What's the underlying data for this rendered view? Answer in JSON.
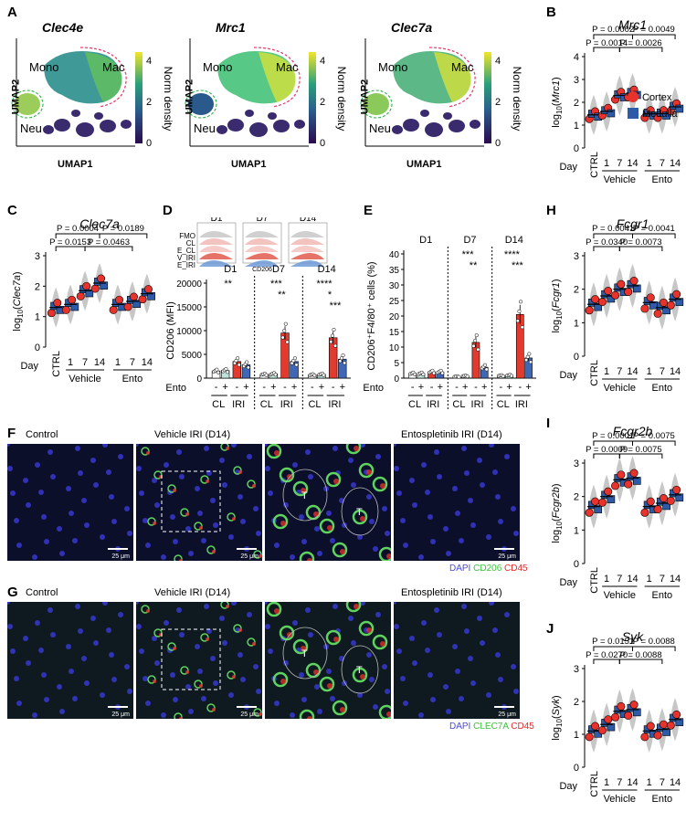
{
  "panels": {
    "A": "A",
    "B": "B",
    "C": "C",
    "D": "D",
    "E": "E",
    "F": "F",
    "G": "G",
    "H": "H",
    "I": "I",
    "J": "J"
  },
  "umap": {
    "titles": [
      "Clec4e",
      "Mrc1",
      "Clec7a"
    ],
    "xlabel": "UMAP1",
    "ylabel": "UMAP2",
    "clusters": [
      "Mono",
      "Mac",
      "Neu"
    ],
    "colorbar_label": "Norm density",
    "colorbar_ticks": [
      "4",
      "2",
      "0"
    ]
  },
  "violin_common": {
    "day_label": "Day",
    "days": [
      "CTRL",
      "1",
      "7",
      "14",
      "1",
      "7",
      "14"
    ],
    "groups": [
      "Vehicle",
      "Ento"
    ],
    "legend": [
      "Cortex",
      "Medulla"
    ],
    "cortex_color": "#e8322c",
    "medulla_color": "#2f5aa8"
  },
  "violins": [
    {
      "panel": "B",
      "gene": "Mrc1",
      "ylabel_pre": "log",
      "ylabel_gene": "Mrc1",
      "yticks": [
        "0",
        "1",
        "2",
        "3",
        "4"
      ],
      "ymax": 4,
      "p_top": [
        "P = 0.0002",
        "P = 0.0049"
      ],
      "p_low": [
        "P = 0.0014",
        "P = 0.0026"
      ],
      "medians": [
        1.45,
        1.6,
        2.3,
        2.4,
        1.5,
        1.5,
        1.8
      ]
    },
    {
      "panel": "C",
      "gene": "Clec7a",
      "ylabel_pre": "log",
      "ylabel_gene": "Clec7a",
      "yticks": [
        "0",
        "1",
        "2",
        "3"
      ],
      "ymax": 3,
      "p_top": [
        "P = 0.0004",
        "P = 0.0189"
      ],
      "p_low": [
        "P = 0.0153",
        "P = 0.0463"
      ],
      "medians": [
        1.3,
        1.4,
        1.85,
        2.1,
        1.4,
        1.5,
        1.75
      ]
    },
    {
      "panel": "H",
      "gene": "Fcgr1",
      "ylabel_pre": "log",
      "ylabel_gene": "Fcgr1",
      "yticks": [
        "0",
        "1",
        "2",
        "3"
      ],
      "ymax": 3,
      "p_top": [
        "P = 0.0041",
        "P = 0.0041"
      ],
      "p_low": [
        "P = 0.0340",
        "P = 0.0073"
      ],
      "medians": [
        1.55,
        1.8,
        2.0,
        2.1,
        1.6,
        1.45,
        1.7
      ]
    },
    {
      "panel": "I",
      "gene": "Fcgr2b",
      "ylabel_pre": "log",
      "ylabel_gene": "Fcgr2b",
      "yticks": [
        "0",
        "1",
        "2",
        "3"
      ],
      "ymax": 3,
      "p_top": [
        "P = 0.0001",
        "P = 0.0075"
      ],
      "p_low": [
        "P = 0.0009",
        "P = 0.0075"
      ],
      "medians": [
        1.7,
        2.0,
        2.5,
        2.55,
        1.7,
        1.8,
        2.05
      ]
    },
    {
      "panel": "J",
      "gene": "Syk",
      "ylabel_pre": "log",
      "ylabel_gene": "Syk",
      "yticks": [
        "0",
        "1",
        "2",
        "3"
      ],
      "ymax": 3,
      "p_top": [
        "P = 0.0151",
        "P = 0.0088"
      ],
      "p_low": [
        "P = 0.0270",
        "P = 0.0088"
      ],
      "medians": [
        1.1,
        1.3,
        1.7,
        1.75,
        1.1,
        1.15,
        1.45
      ]
    }
  ],
  "flow_D": {
    "hist_days": [
      "D1",
      "D7",
      "D14"
    ],
    "hist_rows": [
      "FMO",
      "CL",
      "E_CL",
      "V_IRI",
      "E_IRI"
    ],
    "hist_xlabel": "CD206",
    "ylabel": "CD206 (MFI)",
    "yticks": [
      "0",
      "5000",
      "10000",
      "15000",
      "20000"
    ],
    "ymax": 20000,
    "days": [
      "D1",
      "D7",
      "D14"
    ],
    "ento_label": "Ento",
    "ento_signs": [
      "-",
      "+",
      "-",
      "+"
    ],
    "groups": [
      "CL",
      "IRI"
    ],
    "sig": [
      [
        "**"
      ],
      [
        "***",
        "**"
      ],
      [
        "****",
        "*",
        "***"
      ]
    ],
    "values": [
      [
        1500,
        1600,
        3500,
        2800
      ],
      [
        800,
        900,
        9500,
        3500
      ],
      [
        700,
        800,
        8500,
        4000
      ]
    ]
  },
  "flow_E": {
    "ylabel": "CD206⁺F4/80⁺ cells (%)",
    "yticks": [
      "0",
      "5",
      "10",
      "15",
      "20",
      "25",
      "30",
      "35",
      "40"
    ],
    "ymax": 40,
    "days": [
      "D1",
      "D7",
      "D14"
    ],
    "ento_label": "Ento",
    "ento_signs": [
      "-",
      "+",
      "-",
      "+"
    ],
    "groups": [
      "CL",
      "IRI"
    ],
    "sig": [
      [],
      [
        "***",
        "**"
      ],
      [
        "****",
        "***"
      ]
    ],
    "values": [
      [
        1.5,
        1.5,
        2.0,
        2.0
      ],
      [
        0.5,
        0.7,
        11.5,
        3.5
      ],
      [
        0.8,
        0.9,
        20.5,
        6.5
      ]
    ]
  },
  "micro_F": {
    "titles": [
      "Control",
      "Vehicle IRI (D14)",
      "Entospletinib IRI (D14)"
    ],
    "scale": "25 μm",
    "tubule": "T",
    "legend": [
      "DAPI",
      "CD206",
      "CD45"
    ],
    "legend_colors": [
      "#4a4ae0",
      "#3cc23c",
      "#e02a2a"
    ]
  },
  "micro_G": {
    "titles": [
      "Control",
      "Vehicle IRI (D14)",
      "Entospletinib IRI (D14)"
    ],
    "scale": "25 μm",
    "tubule": "T",
    "legend": [
      "DAPI",
      "CLEC7A",
      "CD45"
    ],
    "legend_colors": [
      "#4a4ae0",
      "#3cc23c",
      "#e02a2a"
    ]
  }
}
